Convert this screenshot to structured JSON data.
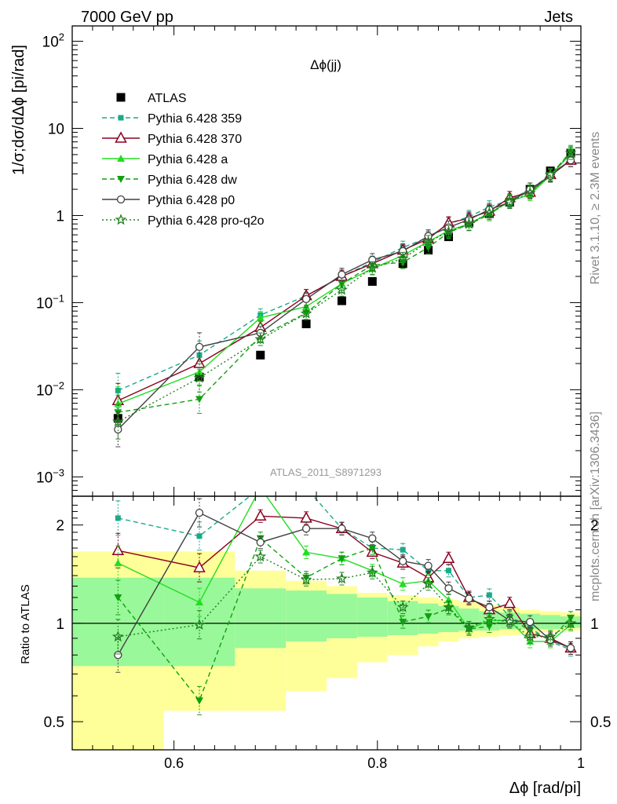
{
  "header": {
    "left": "7000 GeV pp",
    "right": "Jets"
  },
  "side_labels": {
    "rivet": "Rivet 3.1.10, ≥ 2.3M events",
    "mcplots": "mcplots.cern.ch [arXiv:1306.3436]"
  },
  "colors": {
    "atlas": "#000000",
    "p359": "#1aaa8a",
    "p370": "#8b0020",
    "pa": "#22dd22",
    "pdw": "#10a010",
    "pp0": "#404040",
    "pq2o": "#208020",
    "band_inner": "#99f899",
    "band_outer": "#ffff99"
  },
  "chart_data": [
    {
      "type": "scatter",
      "title": "Δϕ(jj)",
      "ylabel": "1/σ;dσ/dΔϕ [pi/rad]",
      "xlabel": "",
      "yscale": "log",
      "xlim": [
        0.5,
        1.0
      ],
      "ylim": [
        0.0006,
        150
      ],
      "analysis_label": "ATLAS_2011_S8971293",
      "x_ticks": [
        0.6,
        0.8,
        1.0
      ],
      "y_ticks": [
        {
          "v": 0.001,
          "base": "10",
          "exp": "−3"
        },
        {
          "v": 0.01,
          "base": "10",
          "exp": "−2"
        },
        {
          "v": 0.1,
          "base": "10",
          "exp": "−1"
        },
        {
          "v": 1,
          "base": "1",
          "exp": ""
        },
        {
          "v": 10,
          "base": "10",
          "exp": ""
        },
        {
          "v": 100,
          "base": "10",
          "exp": "2"
        }
      ],
      "x": [
        0.545,
        0.625,
        0.685,
        0.73,
        0.765,
        0.795,
        0.825,
        0.85,
        0.87,
        0.89,
        0.91,
        0.93,
        0.95,
        0.97,
        0.99
      ],
      "series": [
        {
          "name": "ATLAS",
          "key": "atlas",
          "values": [
            0.0047,
            0.014,
            0.025,
            0.057,
            0.105,
            0.175,
            0.28,
            0.4,
            0.57,
            0.82,
            1.05,
            1.42,
            2.0,
            3.25,
            5.2
          ]
        },
        {
          "name": "Pythia 6.428 359",
          "key": "p359",
          "values": [
            0.0098,
            0.025,
            0.072,
            0.12,
            0.2,
            0.29,
            0.43,
            0.56,
            0.8,
            0.97,
            1.25,
            1.5,
            2.0,
            2.9,
            4.3
          ]
        },
        {
          "name": "Pythia 6.428 370",
          "key": "p370",
          "values": [
            0.0075,
            0.02,
            0.052,
            0.12,
            0.2,
            0.28,
            0.4,
            0.54,
            0.82,
            0.93,
            1.12,
            1.6,
            1.85,
            2.95,
            4.3
          ]
        },
        {
          "name": "Pythia 6.428 a",
          "key": "pa",
          "values": [
            0.0069,
            0.016,
            0.067,
            0.09,
            0.165,
            0.245,
            0.35,
            0.5,
            0.67,
            0.8,
            1.07,
            1.45,
            1.75,
            2.85,
            5.1
          ]
        },
        {
          "name": "Pythia 6.428 dw",
          "key": "pdw",
          "values": [
            0.0055,
            0.0078,
            0.041,
            0.076,
            0.165,
            0.27,
            0.29,
            0.43,
            0.64,
            0.79,
            1.03,
            1.48,
            1.9,
            2.9,
            5.4
          ]
        },
        {
          "name": "Pythia 6.428 p0",
          "key": "pp0",
          "values": [
            0.0035,
            0.031,
            0.045,
            0.11,
            0.21,
            0.31,
            0.39,
            0.58,
            0.73,
            0.9,
            1.17,
            1.42,
            2.0,
            2.85,
            4.3
          ]
        },
        {
          "name": "Pythia 6.428 pro-q2o",
          "key": "pq2o",
          "values": [
            0.0043,
            0.0137,
            0.038,
            0.075,
            0.14,
            0.25,
            0.32,
            0.5,
            0.65,
            0.8,
            1.07,
            1.43,
            1.82,
            2.95,
            5.2
          ]
        }
      ]
    },
    {
      "type": "line",
      "ylabel": "Ratio to ATLAS",
      "xlabel": "Δϕ [rad/pi]",
      "yscale": "log",
      "xlim": [
        0.5,
        1.0
      ],
      "ylim": [
        0.41,
        2.45
      ],
      "x_ticks": [
        0.6,
        0.8,
        1.0
      ],
      "y_ticks": [
        0.5,
        1,
        2
      ],
      "x_ticklabels": [
        "0.6",
        "0.8",
        "1"
      ],
      "bin_edges": [
        0.5,
        0.59,
        0.66,
        0.71,
        0.75,
        0.78,
        0.81,
        0.84,
        0.86,
        0.88,
        0.9,
        0.92,
        0.94,
        0.96,
        0.98,
        1.0
      ],
      "band_inner": [
        [
          0.74,
          1.38
        ],
        [
          0.74,
          1.38
        ],
        [
          0.84,
          1.28
        ],
        [
          0.88,
          1.26
        ],
        [
          0.9,
          1.23
        ],
        [
          0.91,
          1.2
        ],
        [
          0.92,
          1.17
        ],
        [
          0.93,
          1.15
        ],
        [
          0.94,
          1.13
        ],
        [
          0.95,
          1.11
        ],
        [
          0.95,
          1.09
        ],
        [
          0.96,
          1.08
        ],
        [
          0.96,
          1.07
        ],
        [
          0.96,
          1.06
        ],
        [
          0.97,
          1.05
        ]
      ],
      "band_outer": [
        [
          0.41,
          1.66
        ],
        [
          0.54,
          1.66
        ],
        [
          0.54,
          1.45
        ],
        [
          0.62,
          1.35
        ],
        [
          0.68,
          1.3
        ],
        [
          0.76,
          1.24
        ],
        [
          0.8,
          1.22
        ],
        [
          0.85,
          1.2
        ],
        [
          0.88,
          1.18
        ],
        [
          0.9,
          1.16
        ],
        [
          0.91,
          1.14
        ],
        [
          0.92,
          1.12
        ],
        [
          0.93,
          1.1
        ],
        [
          0.94,
          1.09
        ],
        [
          0.95,
          1.08
        ]
      ],
      "x": [
        0.545,
        0.625,
        0.685,
        0.73,
        0.765,
        0.795,
        0.825,
        0.85,
        0.87,
        0.89,
        0.91,
        0.93,
        0.95,
        0.97,
        0.99
      ],
      "series": [
        {
          "name": "Pythia 6.428 359",
          "key": "p359",
          "values": [
            2.1,
            1.85,
            2.6,
            2.6,
            1.95,
            1.7,
            1.68,
            1.45,
            1.45,
            1.2,
            1.22,
            1.05,
            0.97,
            0.88,
            0.83
          ]
        },
        {
          "name": "Pythia 6.428 370",
          "key": "p370",
          "values": [
            1.67,
            1.48,
            2.13,
            2.1,
            1.95,
            1.65,
            1.53,
            1.38,
            1.58,
            1.2,
            1.1,
            1.15,
            0.93,
            0.9,
            0.84
          ]
        },
        {
          "name": "Pythia 6.428 a",
          "key": "pa",
          "values": [
            1.53,
            1.16,
            2.6,
            1.65,
            1.58,
            1.45,
            1.32,
            1.35,
            1.18,
            0.96,
            1.02,
            1.02,
            0.88,
            0.88,
            0.99
          ]
        },
        {
          "name": "Pythia 6.428 dw",
          "key": "pdw",
          "values": [
            1.2,
            0.58,
            1.82,
            1.38,
            1.58,
            1.7,
            1.01,
            1.05,
            1.11,
            0.96,
            0.98,
            1.04,
            0.95,
            0.89,
            1.04
          ]
        },
        {
          "name": "Pythia 6.428 p0",
          "key": "pp0",
          "values": [
            0.8,
            2.18,
            1.77,
            1.95,
            1.95,
            1.82,
            1.55,
            1.5,
            1.28,
            1.19,
            1.12,
            1.02,
            1.01,
            0.89,
            0.84
          ]
        },
        {
          "name": "Pythia 6.428 pro-q2o",
          "key": "pq2o",
          "values": [
            0.91,
            0.99,
            1.6,
            1.36,
            1.37,
            1.43,
            1.12,
            1.32,
            1.12,
            0.97,
            1.03,
            1.01,
            0.91,
            0.91,
            1.0
          ]
        }
      ]
    }
  ]
}
